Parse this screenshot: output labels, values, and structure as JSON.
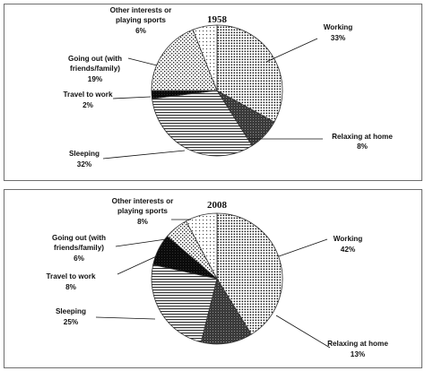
{
  "chart_data": [
    {
      "type": "pie",
      "title": "1958",
      "slices": [
        {
          "category": "Working",
          "value": 33,
          "label": "33%"
        },
        {
          "category": "Relaxing at home",
          "value": 8,
          "label": "8%"
        },
        {
          "category": "Sleeping",
          "value": 32,
          "label": "32%"
        },
        {
          "category": "Travel to work",
          "value": 2,
          "label": "2%"
        },
        {
          "category": "Going out (with friends/family)",
          "value": 19,
          "label": "19%"
        },
        {
          "category": "Other interests or playing sports",
          "value": 6,
          "label": "6%"
        }
      ]
    },
    {
      "type": "pie",
      "title": "2008",
      "slices": [
        {
          "category": "Working",
          "value": 42,
          "label": "42%"
        },
        {
          "category": "Relaxing at home",
          "value": 13,
          "label": "13%"
        },
        {
          "category": "Sleeping",
          "value": 25,
          "label": "25%"
        },
        {
          "category": "Travel to work",
          "value": 8,
          "label": "8%"
        },
        {
          "category": "Going out (with friends/family)",
          "value": 6,
          "label": "6%"
        },
        {
          "category": "Other interests or playing sports",
          "value": 8,
          "label": "8%"
        }
      ]
    }
  ]
}
